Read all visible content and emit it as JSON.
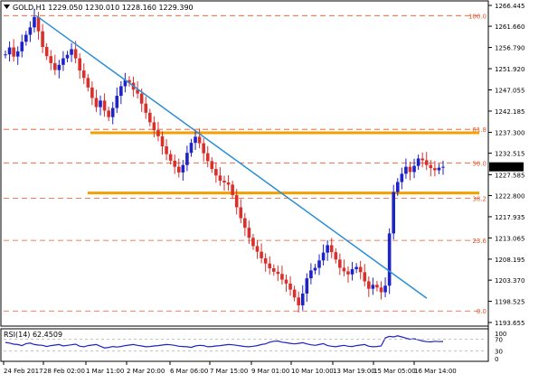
{
  "chart_data": {
    "type": "candlestick",
    "symbol_header": "GOLD,H1  1229.050  1230.010  1228.160  1229.390",
    "current_price": "1229.390",
    "y_axis_ticks": [
      "1266.445",
      "1261.660",
      "1256.790",
      "1251.920",
      "1247.055",
      "1242.185",
      "1237.300",
      "1232.515",
      "1227.585",
      "1222.800",
      "1217.935",
      "1213.065",
      "1208.195",
      "1203.370",
      "1198.525",
      "1193.655"
    ],
    "x_axis_ticks": [
      "24 Feb 2017",
      "28 Feb 02:00",
      "1 Mar 11:00",
      "2 Mar 20:00",
      "6 Mar 06:00",
      "7 Mar 15:00",
      "9 Mar 01:00",
      "10 Mar 10:00",
      "13 Mar 19:00",
      "15 Mar 05:00",
      "16 Mar 14:00"
    ],
    "ylim": [
      1193.655,
      1266.445
    ],
    "fibonacci_levels": [
      {
        "label": "100.0",
        "price": 1264.1
      },
      {
        "label": "61.8",
        "price": 1238.0
      },
      {
        "label": "50.0",
        "price": 1230.3
      },
      {
        "label": "38.2",
        "price": 1222.2
      },
      {
        "label": "23.6",
        "price": 1212.5
      },
      {
        "label": "0.0",
        "price": 1196.3
      }
    ],
    "horizontal_levels": [
      1237.2,
      1223.4
    ],
    "trendline": {
      "from": {
        "date": "24 Feb 2017",
        "price": 1264.1
      },
      "to": {
        "date": "16 Mar 14:00",
        "price": 1199.2
      }
    },
    "series": [
      {
        "name": "GOLD,H1",
        "values": [
          1255.2,
          1256.8,
          1254.7,
          1255.9,
          1258.1,
          1259.7,
          1261.4,
          1263.8,
          1260.5,
          1256.9,
          1254.8,
          1253.2,
          1251.6,
          1252.8,
          1254.3,
          1255.1,
          1256.4,
          1254.3,
          1251.5,
          1249.8,
          1247.6,
          1245.2,
          1243.1,
          1244.6,
          1242.3,
          1240.8,
          1242.9,
          1245.7,
          1247.9,
          1249.3,
          1248.7,
          1247.1,
          1246.2,
          1243.9,
          1241.8,
          1239.6,
          1237.8,
          1236.4,
          1234.1,
          1232.3,
          1230.8,
          1229.4,
          1228.1,
          1229.8,
          1232.6,
          1234.9,
          1236.3,
          1234.8,
          1232.5,
          1230.7,
          1228.9,
          1227.4,
          1226.2,
          1225.8,
          1225.3,
          1222.9,
          1220.1,
          1217.6,
          1215.4,
          1213.1,
          1211.2,
          1209.9,
          1208.4,
          1207.2,
          1206.1,
          1205.3,
          1204.8,
          1203.5,
          1202.6,
          1201.2,
          1199.4,
          1197.6,
          1200.3,
          1203.8,
          1205.6,
          1206.2,
          1207.9,
          1209.7,
          1211.4,
          1209.8,
          1208.1,
          1206.2,
          1205.4,
          1204.7,
          1205.9,
          1206.4,
          1205.2,
          1203.1,
          1201.4,
          1202.3,
          1201.7,
          1200.6,
          1202.1,
          1214.1,
          1223.6,
          1225.9,
          1227.8,
          1229.4,
          1228.2,
          1229.6,
          1231.3,
          1230.9,
          1229.8,
          1229.1,
          1228.6,
          1229.2,
          1229.4
        ]
      }
    ],
    "rsi": {
      "label": "RSI(14) 62.4509",
      "y_ticks": [
        "100",
        "70",
        "30",
        "0"
      ],
      "values": [
        59,
        57,
        53,
        52,
        48,
        55,
        57,
        52,
        50,
        49,
        45,
        48,
        50,
        52,
        47,
        49,
        51,
        53,
        46,
        44,
        48,
        50,
        52,
        46,
        40,
        42,
        45,
        43,
        45,
        48,
        50,
        52,
        49,
        47,
        44,
        45,
        47,
        48,
        50,
        52,
        51,
        49,
        46,
        45,
        44,
        42,
        47,
        49,
        48,
        44,
        45,
        47,
        48,
        50,
        52,
        51,
        49,
        47,
        45,
        44,
        46,
        48,
        52,
        54,
        60,
        63,
        64,
        60,
        58,
        56,
        54,
        56,
        58,
        54,
        51,
        49,
        52,
        55,
        48,
        46,
        44,
        47,
        49,
        46,
        45,
        48,
        50,
        52,
        46,
        44,
        45,
        47,
        75,
        80,
        78,
        82,
        78,
        74,
        70,
        72,
        68,
        64,
        62,
        61,
        63,
        62,
        62.45
      ]
    }
  }
}
